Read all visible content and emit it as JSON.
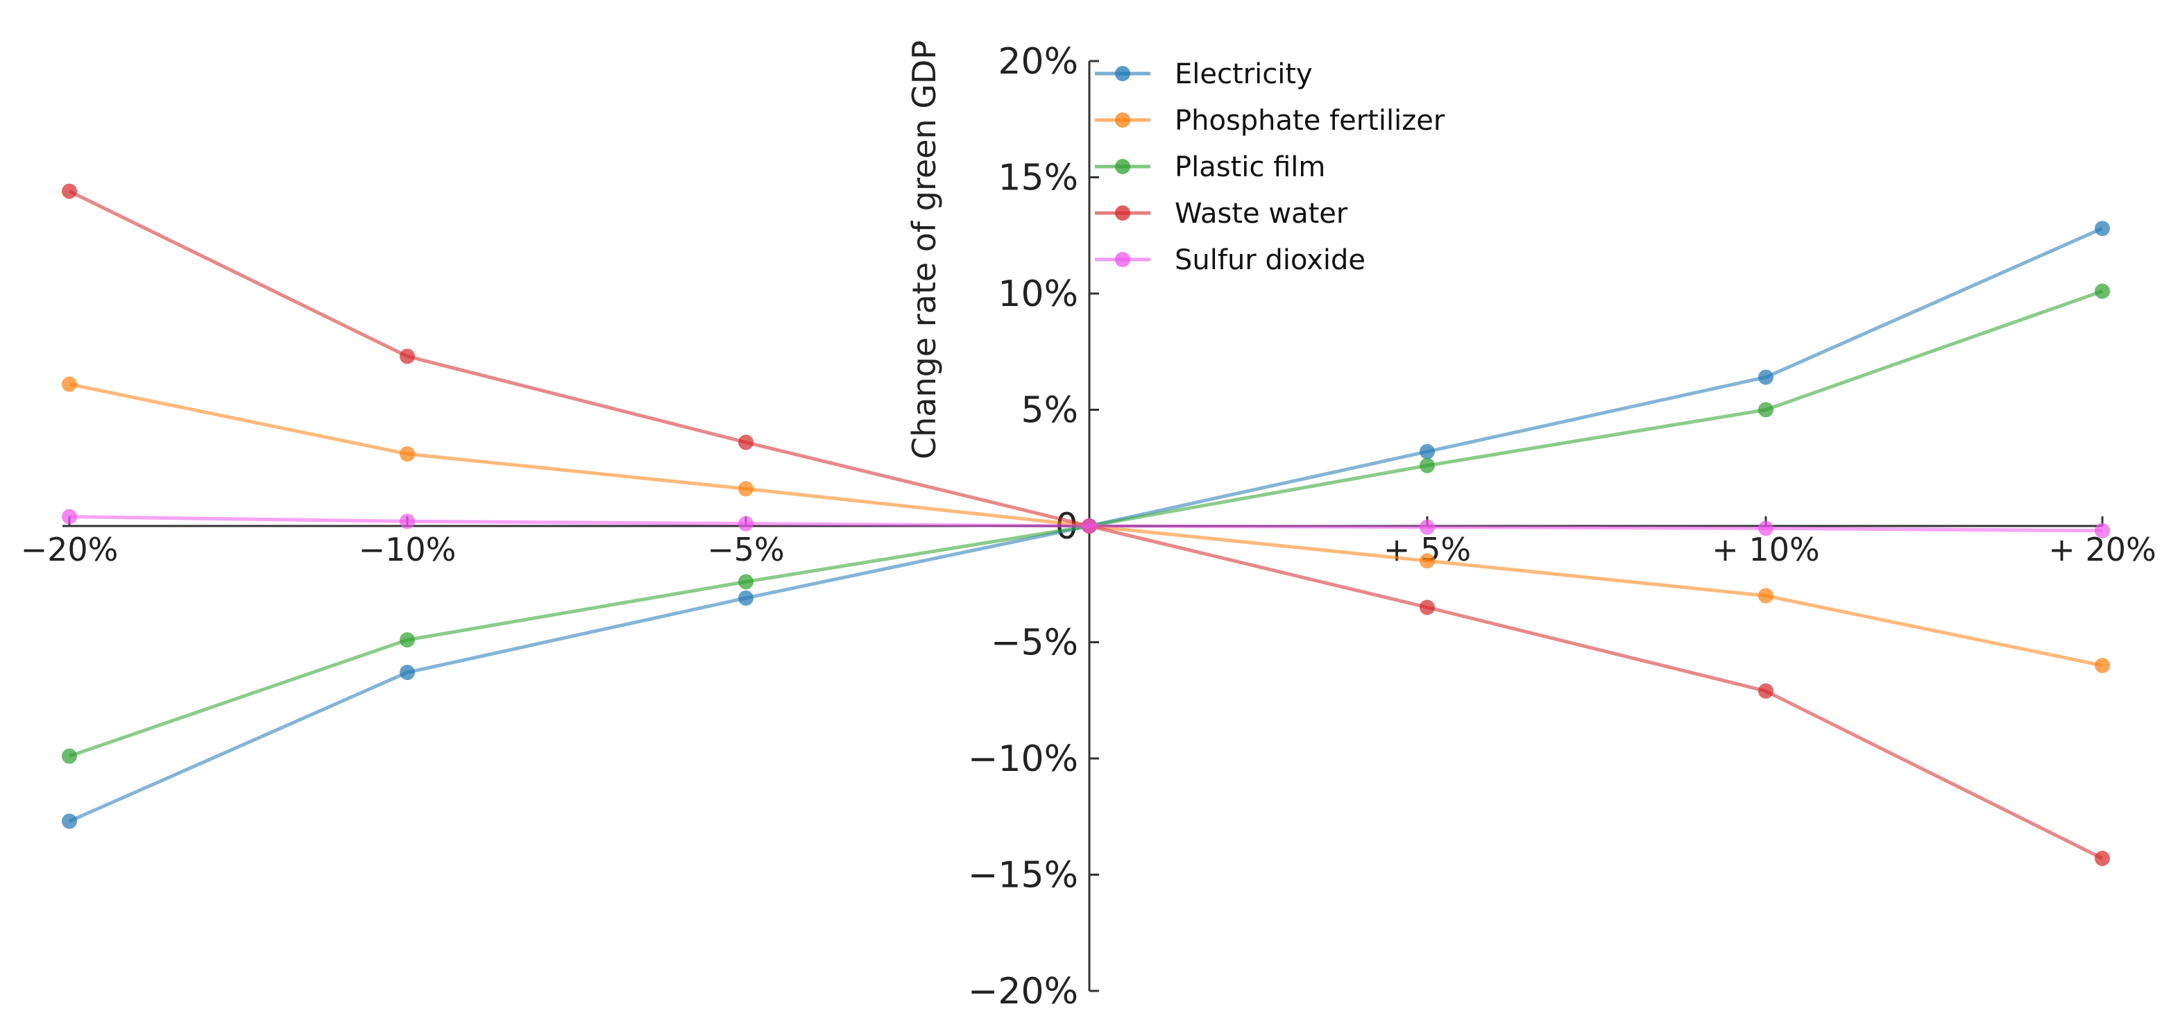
{
  "chart_data": {
    "type": "line",
    "title": "",
    "xlabel": "",
    "ylabel": "Change rate of green GDP",
    "categories": [
      "−20%",
      "−10%",
      "−5%",
      "0",
      "+ 5%",
      "+ 10%",
      "+ 20%"
    ],
    "ylim": [
      -20,
      20
    ],
    "yticks": [
      20,
      15,
      10,
      5,
      0,
      -5,
      -10,
      -15,
      -20
    ],
    "ytick_labels": [
      "20%",
      "15%",
      "10%",
      "5%",
      "0",
      "−5%",
      "−10%",
      "−15%",
      "−20%"
    ],
    "grid": false,
    "legend_position": "top-left",
    "series": [
      {
        "name": "Electricity",
        "color": "#1f77b4",
        "values": [
          -12.7,
          -6.3,
          -3.1,
          0,
          3.2,
          6.4,
          12.8
        ]
      },
      {
        "name": "Phosphate fertilizer",
        "color": "#ff7f0e",
        "values": [
          6.1,
          3.1,
          1.6,
          0,
          -1.5,
          -3.0,
          -6.0
        ]
      },
      {
        "name": "Plastic film",
        "color": "#2ca02c",
        "values": [
          -9.9,
          -4.9,
          -2.4,
          0,
          2.6,
          5.0,
          10.1
        ]
      },
      {
        "name": "Waste water",
        "color": "#d62728",
        "values": [
          14.4,
          7.3,
          3.6,
          0,
          -3.5,
          -7.1,
          -14.3
        ]
      },
      {
        "name": "Sulfur dioxide",
        "color": "#f056ee",
        "values": [
          0.4,
          0.2,
          0.1,
          0,
          -0.05,
          -0.1,
          -0.2
        ]
      }
    ]
  }
}
